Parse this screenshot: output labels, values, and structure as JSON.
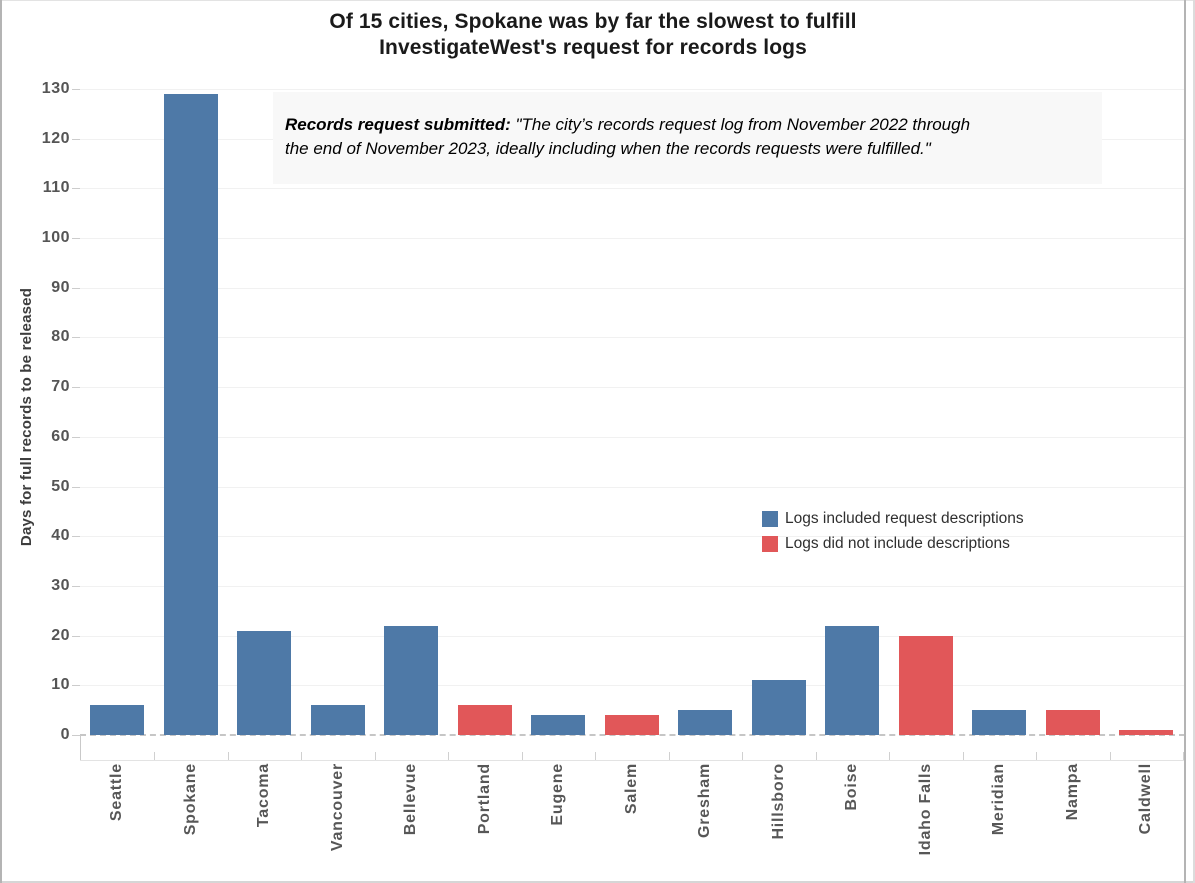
{
  "title": {
    "line1": "Of 15 cities, Spokane was by far the slowest to fulfill",
    "line2": "InvestigateWest's request for records logs"
  },
  "annotation": {
    "lead": "Records request submitted: ",
    "line1": "\"The city’s records request log from November 2022 through",
    "line2": "the end of November 2023, ideally including when the records requests were fulfilled.\""
  },
  "chart_data": {
    "type": "bar",
    "title": "Of 15 cities, Spokane was by far the slowest to fulfill InvestigateWest's request for records logs",
    "categories": [
      "Seattle",
      "Spokane",
      "Tacoma",
      "Vancouver",
      "Bellevue",
      "Portland",
      "Eugene",
      "Salem",
      "Gresham",
      "Hillsboro",
      "Boise",
      "Idaho Falls",
      "Meridian",
      "Nampa",
      "Caldwell"
    ],
    "values": [
      6,
      129,
      21,
      6,
      22,
      6,
      4,
      4,
      5,
      11,
      22,
      20,
      5,
      5,
      1
    ],
    "bar_groups": [
      "included",
      "included",
      "included",
      "included",
      "included",
      "not_included",
      "included",
      "not_included",
      "included",
      "included",
      "included",
      "not_included",
      "included",
      "not_included",
      "not_included"
    ],
    "group_colors": {
      "included": "#4e79a7",
      "not_included": "#e15759"
    },
    "legend": [
      {
        "label": "Logs included request descriptions",
        "group": "included",
        "color": "#4e79a7"
      },
      {
        "label": "Logs did not include descriptions",
        "group": "not_included",
        "color": "#e15759"
      }
    ],
    "xlabel": "",
    "ylabel": "Days for full records to be released",
    "ylim": [
      0,
      133
    ],
    "yticks": [
      0,
      10,
      20,
      30,
      40,
      50,
      60,
      70,
      80,
      90,
      100,
      110,
      120,
      130
    ],
    "grid": "horizontal",
    "zero_line": "dashed",
    "legend_position": "inside-right"
  }
}
